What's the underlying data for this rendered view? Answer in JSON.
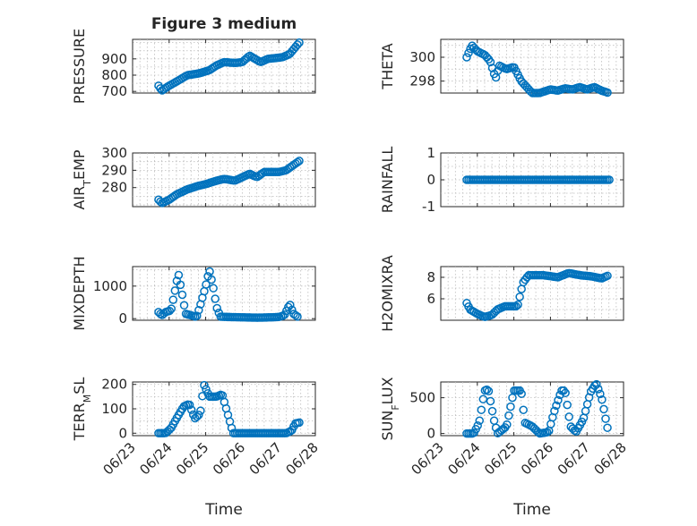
{
  "figure": {
    "title": "Figure 3 medium",
    "marker_color": "#0072BD"
  },
  "chart_data": [
    {
      "type": "scatter",
      "ylabel": "PRESSURE",
      "xlabel": "",
      "title": "Figure 3 medium",
      "xlim": [
        0,
        5
      ],
      "ylim": [
        690,
        1020
      ],
      "yticks": [
        700,
        800,
        900
      ],
      "ytick_labels": [
        "700",
        "800",
        "900"
      ],
      "xticks": [
        0,
        1,
        2,
        3,
        4,
        5
      ],
      "xtick_labels": [
        "06/23",
        "06/24",
        "06/25",
        "06/26",
        "06/27",
        "06/28"
      ],
      "show_xtick_labels": false,
      "grid": true,
      "anchors": [
        [
          0.71,
          735
        ],
        [
          0.8,
          705
        ],
        [
          1.0,
          735
        ],
        [
          1.2,
          760
        ],
        [
          1.5,
          800
        ],
        [
          1.8,
          810
        ],
        [
          2.1,
          830
        ],
        [
          2.3,
          860
        ],
        [
          2.5,
          880
        ],
        [
          2.8,
          875
        ],
        [
          3.0,
          880
        ],
        [
          3.2,
          920
        ],
        [
          3.35,
          900
        ],
        [
          3.5,
          880
        ],
        [
          3.7,
          900
        ],
        [
          3.9,
          905
        ],
        [
          4.1,
          910
        ],
        [
          4.3,
          930
        ],
        [
          4.5,
          985
        ],
        [
          4.6,
          1010
        ]
      ],
      "x": [],
      "y": []
    },
    {
      "type": "scatter",
      "ylabel": "THETA",
      "xlabel": "",
      "xlim": [
        0,
        5
      ],
      "ylim": [
        297,
        301.5
      ],
      "yticks": [
        298,
        300
      ],
      "ytick_labels": [
        "298",
        "300"
      ],
      "xticks": [
        0,
        1,
        2,
        3,
        4,
        5
      ],
      "xtick_labels": [
        "06/23",
        "06/24",
        "06/25",
        "06/26",
        "06/27",
        "06/28"
      ],
      "show_xtick_labels": false,
      "grid": true,
      "anchors": [
        [
          0.71,
          300.0
        ],
        [
          0.85,
          301.0
        ],
        [
          1.0,
          300.5
        ],
        [
          1.2,
          300.2
        ],
        [
          1.35,
          299.7
        ],
        [
          1.5,
          298.2
        ],
        [
          1.6,
          299.3
        ],
        [
          1.8,
          299.0
        ],
        [
          2.0,
          299.2
        ],
        [
          2.2,
          298.0
        ],
        [
          2.35,
          297.5
        ],
        [
          2.5,
          297.0
        ],
        [
          2.7,
          297.0
        ],
        [
          3.0,
          297.3
        ],
        [
          3.2,
          297.2
        ],
        [
          3.4,
          297.4
        ],
        [
          3.6,
          297.3
        ],
        [
          3.8,
          297.5
        ],
        [
          4.0,
          297.3
        ],
        [
          4.2,
          297.5
        ],
        [
          4.4,
          297.2
        ],
        [
          4.6,
          297.0
        ]
      ],
      "x": [],
      "y": []
    },
    {
      "type": "scatter",
      "ylabel": "AIR_TEMP",
      "xlabel": "",
      "xlim": [
        0,
        5
      ],
      "ylim": [
        269,
        300
      ],
      "yticks": [
        280,
        290,
        300
      ],
      "ytick_labels": [
        "280",
        "290",
        "300"
      ],
      "xticks": [
        0,
        1,
        2,
        3,
        4,
        5
      ],
      "xtick_labels": [
        "06/23",
        "06/24",
        "06/25",
        "06/26",
        "06/27",
        "06/28"
      ],
      "show_xtick_labels": false,
      "grid": true,
      "anchors": [
        [
          0.71,
          273
        ],
        [
          0.8,
          271
        ],
        [
          1.0,
          273
        ],
        [
          1.2,
          276
        ],
        [
          1.5,
          279
        ],
        [
          1.8,
          281
        ],
        [
          2.0,
          282
        ],
        [
          2.3,
          284
        ],
        [
          2.5,
          285
        ],
        [
          2.8,
          284
        ],
        [
          3.0,
          286
        ],
        [
          3.2,
          288
        ],
        [
          3.4,
          286
        ],
        [
          3.6,
          289
        ],
        [
          3.8,
          289
        ],
        [
          4.0,
          289
        ],
        [
          4.2,
          290
        ],
        [
          4.4,
          293
        ],
        [
          4.6,
          296
        ]
      ],
      "x": [],
      "y": []
    },
    {
      "type": "scatter",
      "ylabel": "RAINFALL",
      "xlabel": "",
      "xlim": [
        0,
        5
      ],
      "ylim": [
        -1,
        1
      ],
      "yticks": [
        -1,
        0,
        1
      ],
      "ytick_labels": [
        "-1",
        "0",
        "1"
      ],
      "xticks": [
        0,
        1,
        2,
        3,
        4,
        5
      ],
      "xtick_labels": [
        "06/23",
        "06/24",
        "06/25",
        "06/26",
        "06/27",
        "06/28"
      ],
      "show_xtick_labels": false,
      "grid": true,
      "anchors": [
        [
          0.71,
          0
        ],
        [
          4.62,
          0
        ]
      ],
      "x": [],
      "y": []
    },
    {
      "type": "scatter",
      "ylabel": "MIXDEPTH",
      "xlabel": "",
      "xlim": [
        0,
        5
      ],
      "ylim": [
        -50,
        1600
      ],
      "yticks": [
        0,
        1000
      ],
      "ytick_labels": [
        "0",
        "1000"
      ],
      "xticks": [
        0,
        1,
        2,
        3,
        4,
        5
      ],
      "xtick_labels": [
        "06/23",
        "06/24",
        "06/25",
        "06/26",
        "06/27",
        "06/28"
      ],
      "show_xtick_labels": false,
      "grid": true,
      "anchors": [
        [
          0.71,
          200
        ],
        [
          0.8,
          100
        ],
        [
          0.9,
          200
        ],
        [
          1.05,
          250
        ],
        [
          1.15,
          800
        ],
        [
          1.25,
          1400
        ],
        [
          1.35,
          800
        ],
        [
          1.45,
          150
        ],
        [
          1.6,
          100
        ],
        [
          1.75,
          50
        ],
        [
          1.85,
          400
        ],
        [
          2.0,
          1000
        ],
        [
          2.1,
          1500
        ],
        [
          2.2,
          1000
        ],
        [
          2.3,
          350
        ],
        [
          2.4,
          60
        ],
        [
          2.6,
          50
        ],
        [
          3.0,
          40
        ],
        [
          3.4,
          30
        ],
        [
          3.8,
          40
        ],
        [
          4.0,
          50
        ],
        [
          4.15,
          100
        ],
        [
          4.3,
          450
        ],
        [
          4.4,
          150
        ],
        [
          4.55,
          30
        ]
      ],
      "x": [],
      "y": []
    },
    {
      "type": "scatter",
      "ylabel": "H2OMIXRA",
      "xlabel": "",
      "xlim": [
        0,
        5
      ],
      "ylim": [
        4,
        9
      ],
      "yticks": [
        6,
        8
      ],
      "ytick_labels": [
        "6",
        "8"
      ],
      "xticks": [
        0,
        1,
        2,
        3,
        4,
        5
      ],
      "xtick_labels": [
        "06/23",
        "06/24",
        "06/25",
        "06/26",
        "06/27",
        "06/28"
      ],
      "show_xtick_labels": false,
      "grid": true,
      "anchors": [
        [
          0.71,
          5.6
        ],
        [
          0.8,
          5.0
        ],
        [
          1.0,
          4.6
        ],
        [
          1.2,
          4.3
        ],
        [
          1.4,
          4.5
        ],
        [
          1.55,
          5.0
        ],
        [
          1.75,
          5.3
        ],
        [
          2.1,
          5.3
        ],
        [
          2.25,
          7.5
        ],
        [
          2.4,
          8.2
        ],
        [
          2.8,
          8.2
        ],
        [
          3.2,
          8.0
        ],
        [
          3.5,
          8.4
        ],
        [
          3.8,
          8.2
        ],
        [
          4.1,
          8.1
        ],
        [
          4.4,
          7.9
        ],
        [
          4.6,
          8.2
        ]
      ],
      "x": [],
      "y": []
    },
    {
      "type": "scatter",
      "ylabel": "TERR_MSL",
      "xlabel": "Time",
      "xlim": [
        0,
        5
      ],
      "ylim": [
        -10,
        210
      ],
      "yticks": [
        0,
        100,
        200
      ],
      "ytick_labels": [
        "0",
        "100",
        "200"
      ],
      "xticks": [
        0,
        1,
        2,
        3,
        4,
        5
      ],
      "xtick_labels": [
        "06/23",
        "06/24",
        "06/25",
        "06/26",
        "06/27",
        "06/28"
      ],
      "show_xtick_labels": true,
      "grid": true,
      "anchors": [
        [
          0.71,
          0
        ],
        [
          0.9,
          0
        ],
        [
          1.05,
          20
        ],
        [
          1.2,
          60
        ],
        [
          1.4,
          110
        ],
        [
          1.55,
          120
        ],
        [
          1.7,
          60
        ],
        [
          1.85,
          80
        ],
        [
          1.95,
          200
        ],
        [
          2.1,
          150
        ],
        [
          2.3,
          150
        ],
        [
          2.45,
          160
        ],
        [
          2.6,
          80
        ],
        [
          2.75,
          0
        ],
        [
          3.2,
          0
        ],
        [
          3.8,
          0
        ],
        [
          4.2,
          0
        ],
        [
          4.35,
          10
        ],
        [
          4.45,
          40
        ],
        [
          4.6,
          45
        ]
      ],
      "x": [],
      "y": []
    },
    {
      "type": "scatter",
      "ylabel": "SUN_FLUX",
      "xlabel": "Time",
      "xlim": [
        0,
        5
      ],
      "ylim": [
        -30,
        720
      ],
      "yticks": [
        0,
        500
      ],
      "ytick_labels": [
        "0",
        "500"
      ],
      "xticks": [
        0,
        1,
        2,
        3,
        4,
        5
      ],
      "xtick_labels": [
        "06/23",
        "06/24",
        "06/25",
        "06/26",
        "06/27",
        "06/28"
      ],
      "show_xtick_labels": true,
      "grid": true,
      "anchors": [
        [
          0.71,
          0
        ],
        [
          0.9,
          0
        ],
        [
          1.05,
          150
        ],
        [
          1.2,
          600
        ],
        [
          1.3,
          620
        ],
        [
          1.45,
          200
        ],
        [
          1.55,
          0
        ],
        [
          1.8,
          100
        ],
        [
          2.0,
          600
        ],
        [
          2.2,
          600
        ],
        [
          2.3,
          150
        ],
        [
          2.5,
          100
        ],
        [
          2.7,
          0
        ],
        [
          2.95,
          20
        ],
        [
          3.1,
          300
        ],
        [
          3.3,
          600
        ],
        [
          3.4,
          600
        ],
        [
          3.55,
          100
        ],
        [
          3.7,
          20
        ],
        [
          3.9,
          200
        ],
        [
          4.1,
          580
        ],
        [
          4.25,
          700
        ],
        [
          4.4,
          500
        ],
        [
          4.55,
          100
        ],
        [
          4.6,
          0
        ]
      ],
      "x": [],
      "y": []
    }
  ]
}
